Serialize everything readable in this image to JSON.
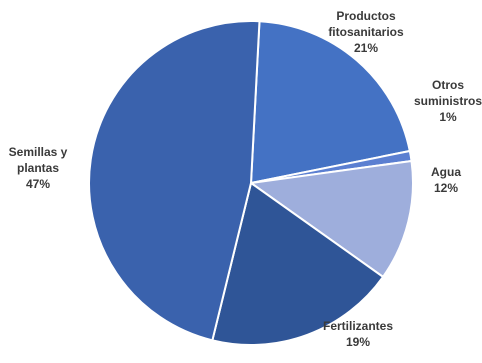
{
  "chart_data": {
    "type": "pie",
    "title": "",
    "slices": [
      {
        "label_lines": [
          "Productos",
          "fitosanitarios"
        ],
        "value_label": "21%",
        "value": 21,
        "color": "#4472c4"
      },
      {
        "label_lines": [
          "Otros",
          "suministros"
        ],
        "value_label": "1%",
        "value": 1,
        "color": "#5b7fd1"
      },
      {
        "label_lines": [
          "Agua"
        ],
        "value_label": "12%",
        "value": 12,
        "color": "#9eaedc"
      },
      {
        "label_lines": [
          "Fertilizantes"
        ],
        "value_label": "19%",
        "value": 19,
        "color": "#2f5597"
      },
      {
        "label_lines": [
          "Semillas y",
          "plantas"
        ],
        "value_label": "47%",
        "value": 47,
        "color": "#3a62ad"
      }
    ],
    "start_angle_deg": 3,
    "direction": "clockwise",
    "legend": "none",
    "labels": "outside"
  }
}
